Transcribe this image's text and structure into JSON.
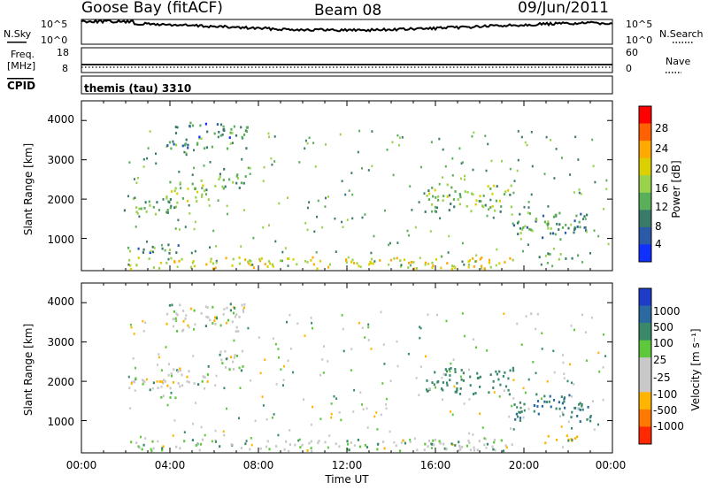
{
  "header": {
    "station": "Goose Bay (fitACF)",
    "beam": "Beam 08",
    "date": "09/Jun/2011"
  },
  "noise_panel": {
    "left_label": "N.Sky",
    "right_label": "N.Search",
    "ticks_left": [
      "10^5",
      "10^0"
    ],
    "ticks_right": [
      "10^5",
      "10^0"
    ]
  },
  "freq_panel": {
    "left_label_1": "Freq.",
    "left_label_2": "[MHz]",
    "right_label": "Nave",
    "ticks_left": [
      "18",
      "8"
    ],
    "ticks_right": [
      "60",
      "0"
    ]
  },
  "cpid": {
    "label": "CPID",
    "value": "themis (tau) 3310"
  },
  "power_panel": {
    "ylabel": "Slant Range [km]",
    "yticks": [
      "4000",
      "3000",
      "2000",
      "1000"
    ],
    "colorbar_label": "Power [dB]",
    "colorbar_ticks": [
      "28",
      "24",
      "20",
      "16",
      "12",
      "8",
      "4"
    ],
    "colors": [
      "#ff0000",
      "#ff6000",
      "#ffaa00",
      "#dcd000",
      "#9bd24b",
      "#5aaf5a",
      "#3a7a6a",
      "#2a5aa8",
      "#1030ff"
    ]
  },
  "velocity_panel": {
    "ylabel": "Slant Range [km]",
    "yticks": [
      "4000",
      "3000",
      "2000",
      "1000"
    ],
    "colorbar_label": "Velocity [m s⁻¹]",
    "colorbar_ticks": [
      "1000",
      "500",
      "100",
      "25",
      "-25",
      "-100",
      "-500",
      "-1000"
    ],
    "colors": [
      "#1e3cc8",
      "#2a6aa0",
      "#3a8a6a",
      "#5cc83a",
      "#c8c8c8",
      "#c8c8c8",
      "#ffb400",
      "#ff7800",
      "#ff2800"
    ]
  },
  "xaxis": {
    "label": "Time UT",
    "ticks": [
      "00:00",
      "04:00",
      "08:00",
      "12:00",
      "16:00",
      "20:00",
      "00:00"
    ]
  },
  "chart_data": [
    {
      "type": "heatmap",
      "title": "Goose Bay (fitACF) Beam 08 09/Jun/2011",
      "xlabel": "Time UT",
      "ylabel": "Slant Range [km]",
      "xlim": [
        0,
        24
      ],
      "ylim": [
        180,
        4500
      ],
      "zlabel": "Power [dB]",
      "zlim": [
        0,
        30
      ],
      "regions": [
        {
          "x": [
            1.9,
            4.3
          ],
          "y": [
            1600,
            2100
          ],
          "z": 10
        },
        {
          "x": [
            3.8,
            5.8
          ],
          "y": [
            1900,
            2500
          ],
          "z": 13
        },
        {
          "x": [
            5.8,
            7.5
          ],
          "y": [
            2300,
            2800
          ],
          "z": 10
        },
        {
          "x": [
            3.8,
            7.5
          ],
          "y": [
            3300,
            4000
          ],
          "z": 7
        },
        {
          "x": [
            2.0,
            4.5
          ],
          "y": [
            650,
            900
          ],
          "z": 7
        },
        {
          "x": [
            2.0,
            19.5
          ],
          "y": [
            250,
            550
          ],
          "z": 18
        },
        {
          "x": [
            15.5,
            19.5
          ],
          "y": [
            1700,
            2400
          ],
          "z": 12
        },
        {
          "x": [
            19.5,
            23.0
          ],
          "y": [
            1000,
            1700
          ],
          "z": 8
        },
        {
          "x": [
            20.5,
            22.5
          ],
          "y": [
            450,
            650
          ],
          "z": 10
        }
      ]
    },
    {
      "type": "heatmap",
      "title": "Goose Bay (fitACF) Beam 08 09/Jun/2011",
      "xlabel": "Time UT",
      "ylabel": "Slant Range [km]",
      "xlim": [
        0,
        24
      ],
      "ylim": [
        180,
        4500
      ],
      "zlabel": "Velocity [m s-1]",
      "zlim": [
        -1000,
        1000
      ],
      "regions": [
        {
          "x": [
            1.9,
            4.3
          ],
          "y": [
            1600,
            2100
          ],
          "z": 0
        },
        {
          "x": [
            3.8,
            5.8
          ],
          "y": [
            1900,
            2500
          ],
          "z": 0
        },
        {
          "x": [
            5.8,
            7.5
          ],
          "y": [
            2300,
            2800
          ],
          "z": 0
        },
        {
          "x": [
            3.8,
            7.5
          ],
          "y": [
            3300,
            4000
          ],
          "z": 0
        },
        {
          "x": [
            2.0,
            19.5
          ],
          "y": [
            250,
            550
          ],
          "z": 10
        },
        {
          "x": [
            15.5,
            19.5
          ],
          "y": [
            1700,
            2400
          ],
          "z": 150
        },
        {
          "x": [
            19.5,
            23.0
          ],
          "y": [
            1000,
            1700
          ],
          "z": 300
        },
        {
          "x": [
            20.5,
            22.5
          ],
          "y": [
            450,
            650
          ],
          "z": -200
        }
      ]
    }
  ]
}
